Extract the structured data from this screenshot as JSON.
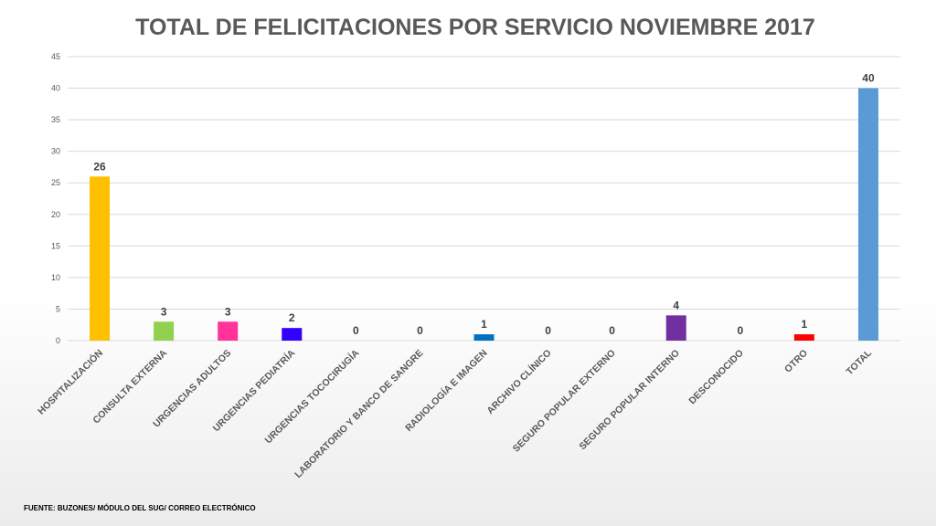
{
  "chart_data": {
    "type": "bar",
    "title": "TOTAL DE FELICITACIONES POR SERVICIO NOVIEMBRE 2017",
    "categories": [
      "HOSPITALIZACIÓN",
      "CONSULTA EXTERNA",
      "URGENCIAS ADULTOS",
      "URGENCIAS PEDIATRÍA",
      "URGENCIAS TOCOCIRUGÍA",
      "LABORATORIO Y BANCO DE SANGRE",
      "RADIOLOGÍA E IMAGEN",
      "ARCHIVO CLÍNICO",
      "SEGURO POPULAR EXTERNO",
      "SEGURO POPULAR INTERNO",
      "DESCONOCIDO",
      "OTRO",
      "TOTAL"
    ],
    "values": [
      26,
      3,
      3,
      2,
      0,
      0,
      1,
      0,
      0,
      4,
      0,
      1,
      40
    ],
    "colors": [
      "#ffc000",
      "#92d050",
      "#ff3399",
      "#3300ff",
      "#7f7f7f",
      "#7f7f7f",
      "#0070c0",
      "#7f7f7f",
      "#7f7f7f",
      "#7030a0",
      "#7f7f7f",
      "#ff0000",
      "#5b9bd5"
    ],
    "ylim": [
      0,
      45
    ],
    "yticks": [
      0,
      5,
      10,
      15,
      20,
      25,
      30,
      35,
      40,
      45
    ],
    "grid": true,
    "data_labels": true
  },
  "footer": {
    "source": "FUENTE: BUZONES/ MÓDULO DEL SUG/ CORREO ELECTRÓNICO"
  }
}
